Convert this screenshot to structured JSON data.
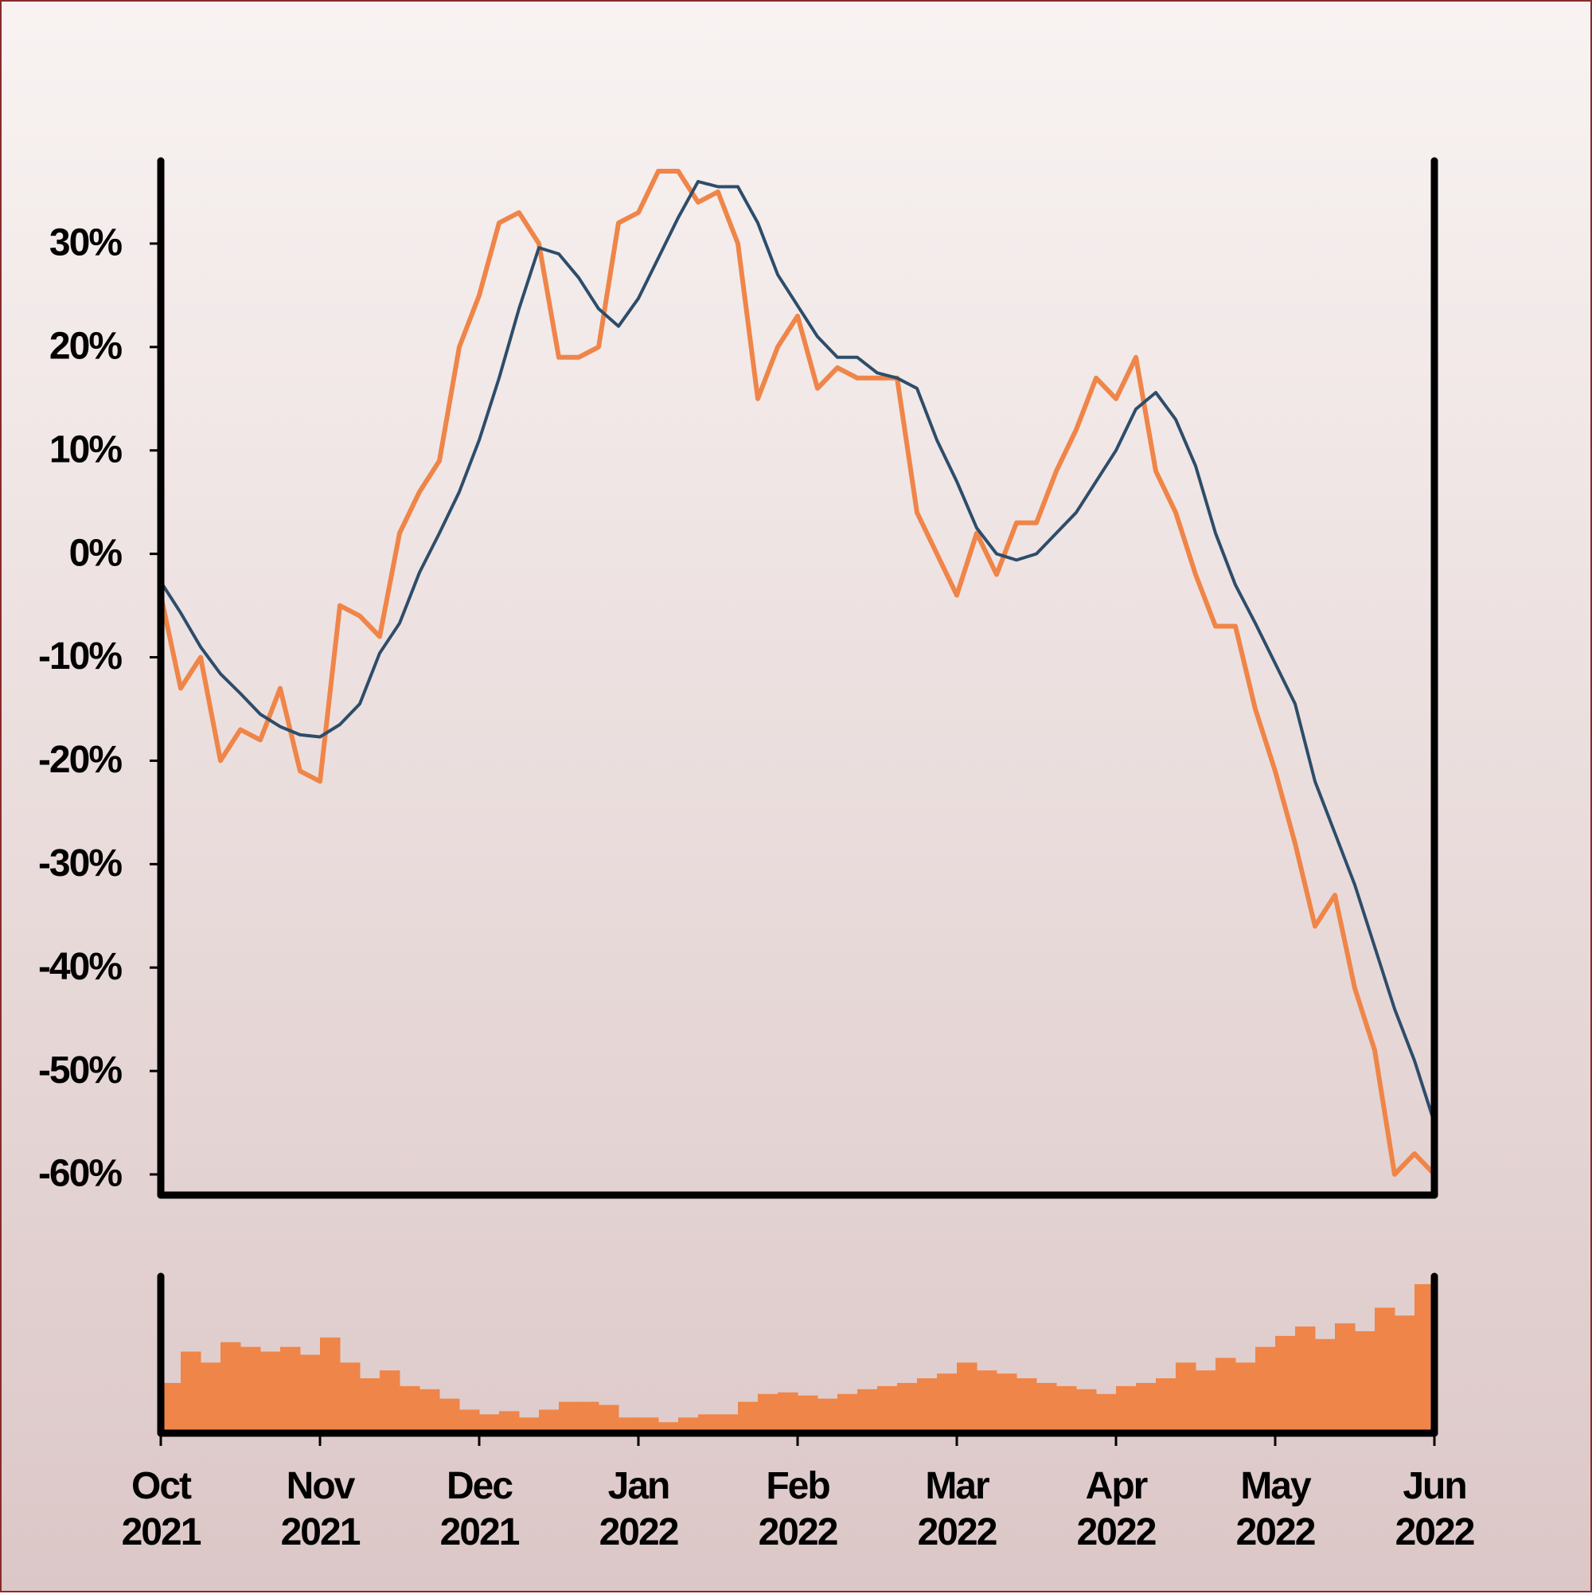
{
  "chart_data": [
    {
      "type": "line",
      "x": [
        0,
        0.125,
        0.25,
        0.375,
        0.5,
        0.625,
        0.75,
        0.875,
        1,
        1.125,
        1.25,
        1.375,
        1.5,
        1.625,
        1.75,
        1.875,
        2,
        2.125,
        2.25,
        2.375,
        2.5,
        2.625,
        2.75,
        2.875,
        3,
        3.125,
        3.25,
        3.375,
        3.5,
        3.625,
        3.75,
        3.875,
        4,
        4.125,
        4.25,
        4.375,
        4.5,
        4.625,
        4.75,
        4.875,
        5,
        5.125,
        5.25,
        5.375,
        5.5,
        5.625,
        5.75,
        5.875,
        6,
        6.125,
        6.25,
        6.375,
        6.5,
        6.625,
        6.75,
        6.875,
        7,
        7.125,
        7.25,
        7.375,
        7.5,
        7.625,
        7.75,
        7.875,
        8
      ],
      "series": [
        {
          "color": "#ef8548",
          "values": [
            -4,
            -13,
            -10,
            -20,
            -17,
            -18,
            -13,
            -21,
            -22,
            -5,
            -6,
            -8,
            2,
            6,
            9,
            20,
            25,
            32,
            33,
            30,
            19,
            19,
            20,
            32,
            33,
            37,
            37,
            34,
            35,
            30,
            15,
            20,
            23,
            16,
            18,
            17,
            17,
            17,
            4,
            0,
            -4,
            2,
            -2,
            3,
            3,
            8,
            12,
            17,
            15,
            19,
            8,
            4,
            -2,
            -7,
            -7,
            -15,
            -21,
            -28,
            -36,
            -33,
            -42,
            -48,
            -60,
            -58,
            -60
          ]
        },
        {
          "color": "#2d4d6a",
          "values": [
            -2.7,
            -5.7,
            -9,
            -11.6,
            -13.5,
            -15.5,
            -16.7,
            -17.5,
            -17.7,
            -16.5,
            -14.5,
            -9.6,
            -6.7,
            -1.8,
            2,
            6,
            11,
            17,
            23.7,
            29.6,
            29,
            26.7,
            23.7,
            22,
            24.7,
            28.6,
            32.5,
            36,
            35.5,
            35.5,
            32,
            27,
            24,
            21,
            19,
            19,
            17.5,
            17,
            16,
            11,
            7,
            2.5,
            0,
            -0.6,
            0,
            2,
            4,
            7,
            10,
            14,
            15.6,
            13,
            8.5,
            2,
            -3,
            -6.7,
            -10.6,
            -14.5,
            -22,
            -27,
            -32,
            -38,
            -44,
            -49,
            -55
          ]
        }
      ],
      "xlim": [
        0,
        8
      ],
      "ylim": [
        -62,
        38
      ],
      "yticks": [
        {
          "value": -60,
          "label": "-60%"
        },
        {
          "value": -50,
          "label": "-50%"
        },
        {
          "value": -40,
          "label": "-40%"
        },
        {
          "value": -30,
          "label": "-30%"
        },
        {
          "value": -20,
          "label": "-20%"
        },
        {
          "value": -10,
          "label": "-10%"
        },
        {
          "value": 0,
          "label": "0%"
        },
        {
          "value": 10,
          "label": "10%"
        },
        {
          "value": 20,
          "label": "20%"
        },
        {
          "value": 30,
          "label": "30%"
        }
      ]
    },
    {
      "type": "bar",
      "x": [
        0,
        0.125,
        0.25,
        0.375,
        0.5,
        0.625,
        0.75,
        0.875,
        1,
        1.125,
        1.25,
        1.375,
        1.5,
        1.625,
        1.75,
        1.875,
        2,
        2.125,
        2.25,
        2.375,
        2.5,
        2.625,
        2.75,
        2.875,
        3,
        3.125,
        3.25,
        3.375,
        3.5,
        3.625,
        3.75,
        3.875,
        4,
        4.125,
        4.25,
        4.375,
        4.5,
        4.625,
        4.75,
        4.875,
        5,
        5.125,
        5.25,
        5.375,
        5.5,
        5.625,
        5.75,
        5.875,
        6,
        6.125,
        6.25,
        6.375,
        6.5,
        6.625,
        6.75,
        6.875,
        7,
        7.125,
        7.25,
        7.375,
        7.5,
        7.625,
        7.75,
        7.875
      ],
      "values": [
        32,
        52,
        45,
        58,
        55,
        52,
        55,
        50,
        61,
        45,
        35,
        40,
        30,
        28,
        22,
        15,
        12,
        14,
        10,
        15,
        20,
        20,
        18,
        10,
        10,
        7,
        10,
        12,
        12,
        20,
        25,
        26,
        24,
        22,
        25,
        28,
        30,
        32,
        35,
        38,
        45,
        40,
        38,
        35,
        32,
        30,
        28,
        25,
        30,
        32,
        35,
        45,
        40,
        48,
        45,
        55,
        62,
        68,
        60,
        70,
        65,
        80,
        75,
        95
      ],
      "color": "#ef8548",
      "bar_width": 0.125,
      "xlim": [
        0,
        8
      ],
      "ylim": [
        0,
        100
      ],
      "xticks": [
        {
          "value": 0,
          "label": "Oct\n2021"
        },
        {
          "value": 1,
          "label": "Nov\n2021"
        },
        {
          "value": 2,
          "label": "Dec\n2021"
        },
        {
          "value": 3,
          "label": "Jan\n2022"
        },
        {
          "value": 4,
          "label": "Feb\n2022"
        },
        {
          "value": 5,
          "label": "Mar\n2022"
        },
        {
          "value": 6,
          "label": "Apr\n2022"
        },
        {
          "value": 7,
          "label": "May\n2022"
        },
        {
          "value": 8,
          "label": "Jun\n2022"
        }
      ]
    }
  ]
}
